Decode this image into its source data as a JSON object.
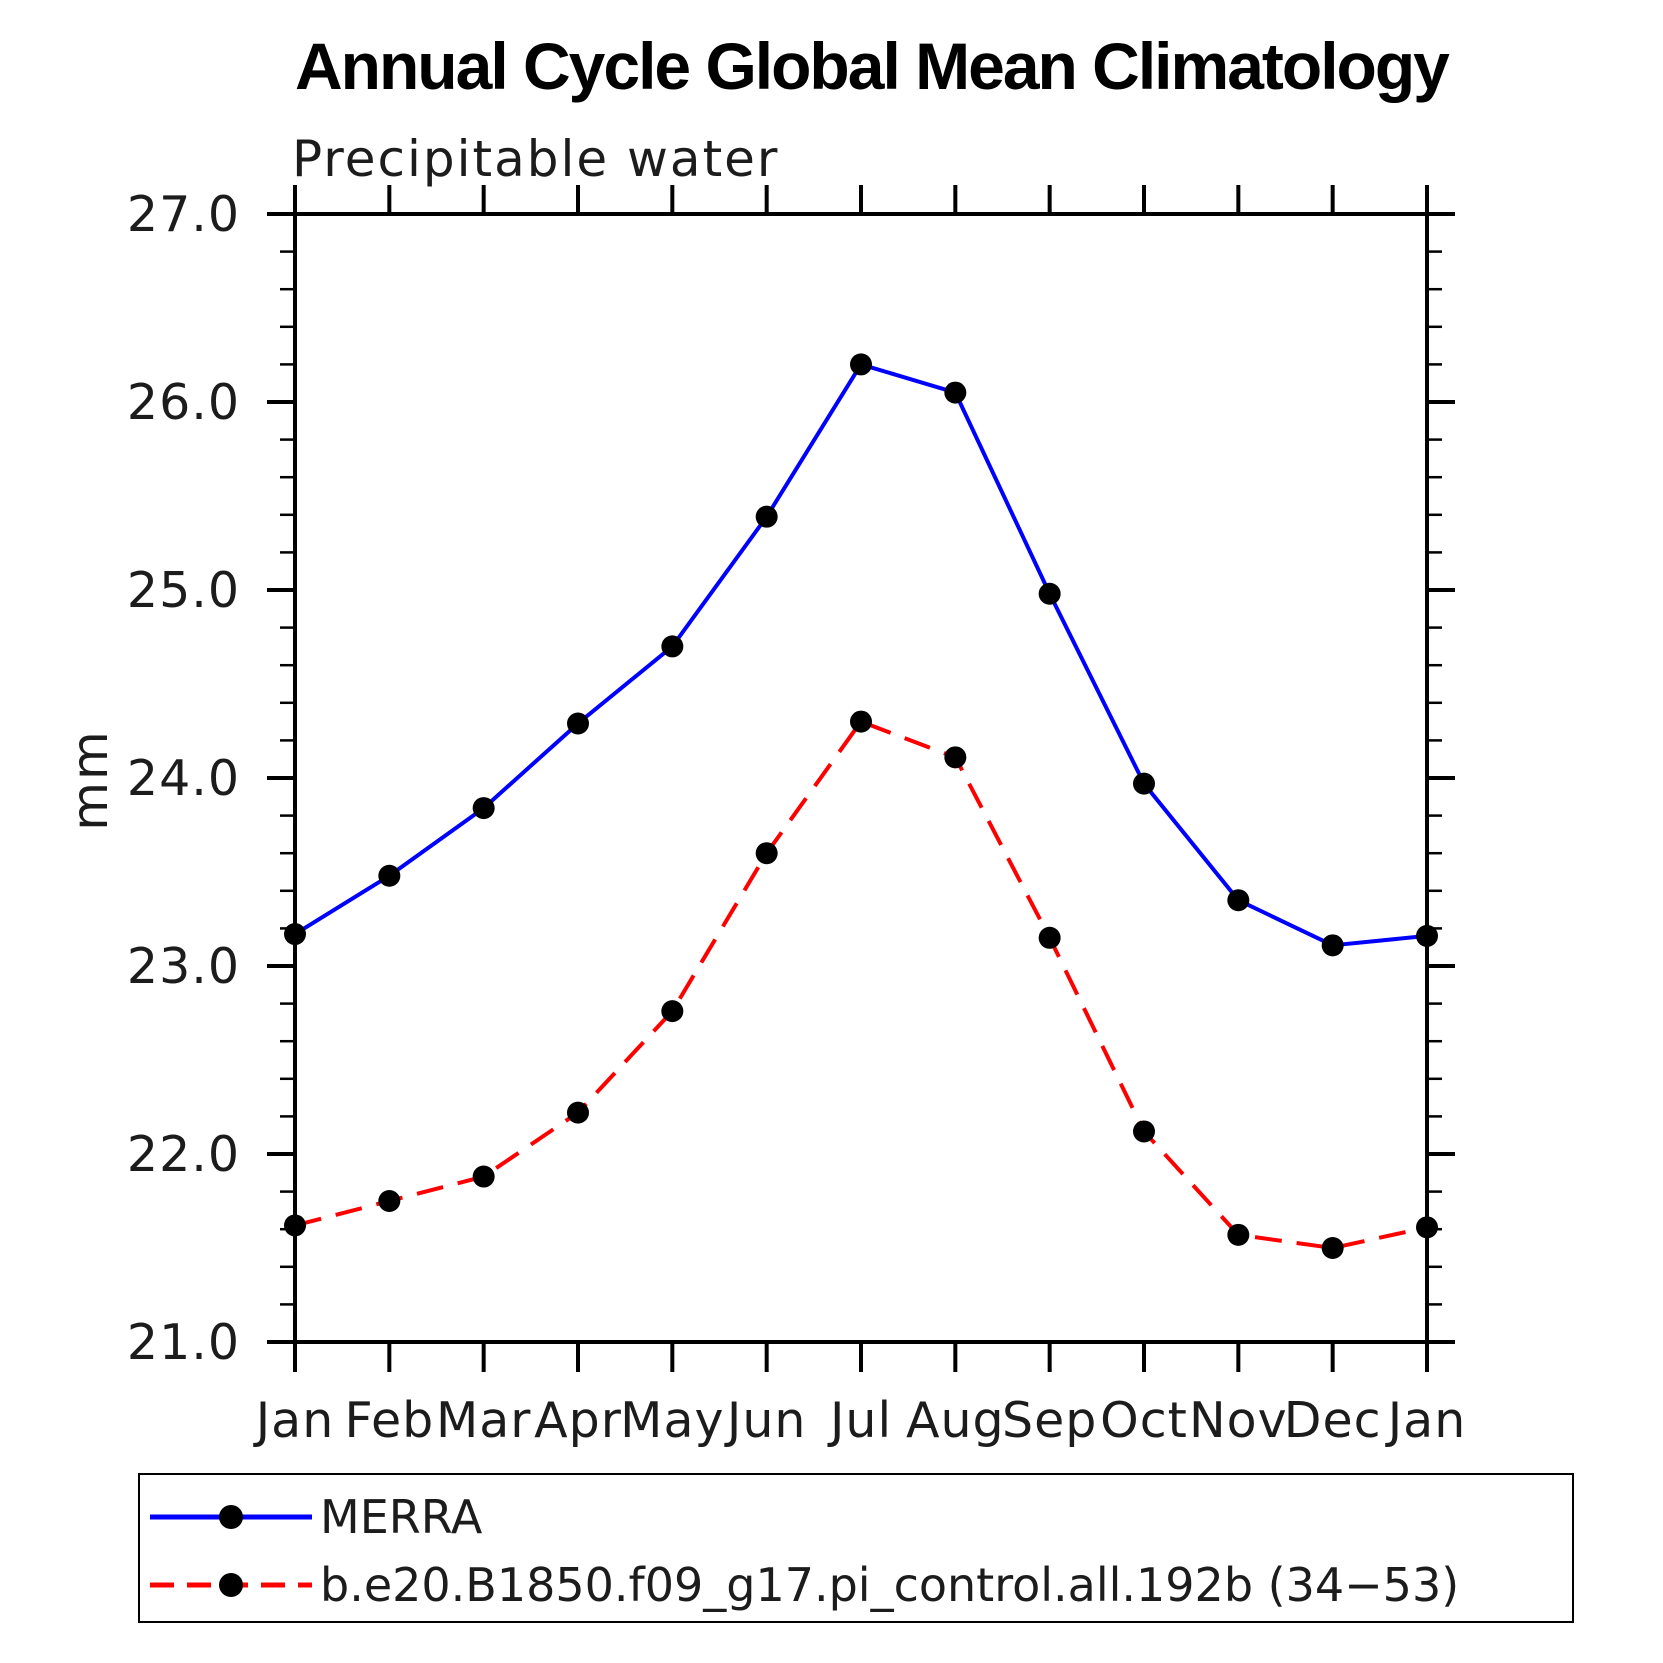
{
  "chart_data": {
    "type": "line",
    "title": "Annual Cycle Global Mean Climatology",
    "subtitle": "Precipitable water",
    "ylabel": "mm",
    "xlabel": "",
    "categories": [
      "Jan",
      "Feb",
      "Mar",
      "Apr",
      "May",
      "Jun",
      "Jul",
      "Aug",
      "Sep",
      "Oct",
      "Nov",
      "Dec",
      "Jan"
    ],
    "ylim": [
      21.0,
      27.0
    ],
    "ytick_step": 1.0,
    "yminor_step": 0.2,
    "ytick_labels": [
      "21.0",
      "22.0",
      "23.0",
      "24.0",
      "25.0",
      "26.0",
      "27.0"
    ],
    "grid": false,
    "legend_position": "bottom",
    "axis_color": "#000000",
    "marker_color": "#000000",
    "series": [
      {
        "name": "MERRA",
        "color": "#0000ff",
        "style": "solid",
        "marker": "circle",
        "values": [
          23.17,
          23.48,
          23.84,
          24.29,
          24.7,
          25.39,
          26.2,
          26.05,
          24.98,
          23.97,
          23.35,
          23.11,
          23.16
        ]
      },
      {
        "name": "b.e20.B1850.f09_g17.pi_control.all.192b (34−53)",
        "color": "#ff0000",
        "style": "dashed",
        "marker": "circle",
        "values": [
          21.62,
          21.75,
          21.88,
          22.22,
          22.76,
          23.6,
          24.3,
          24.11,
          23.15,
          22.12,
          21.57,
          21.5,
          21.61
        ]
      }
    ]
  }
}
